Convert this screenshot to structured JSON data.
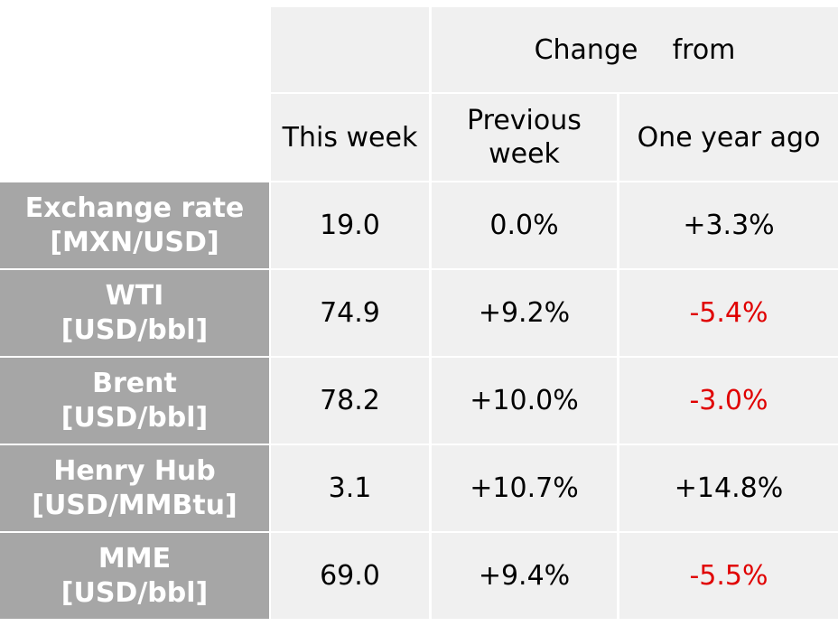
{
  "header": {
    "change_from": "Change    from",
    "this_week": "This week",
    "previous_week": "Previous\nweek",
    "one_year_ago": "One year ago"
  },
  "rows": [
    {
      "label": "Exchange rate\n[MXN/USD]",
      "this_week": "19.0",
      "previous_week": "0.0%",
      "one_year_ago": "+3.3%",
      "one_year_negative": false
    },
    {
      "label": "WTI\n[USD/bbl]",
      "this_week": "74.9",
      "previous_week": "+9.2%",
      "one_year_ago": "-5.4%",
      "one_year_negative": true
    },
    {
      "label": "Brent\n[USD/bbl]",
      "this_week": "78.2",
      "previous_week": "+10.0%",
      "one_year_ago": "-3.0%",
      "one_year_negative": true
    },
    {
      "label": "Henry Hub\n[USD/MMBtu]",
      "this_week": "3.1",
      "previous_week": "+10.7%",
      "one_year_ago": "+14.8%",
      "one_year_negative": false
    },
    {
      "label": "MME\n[USD/bbl]",
      "this_week": "69.0",
      "previous_week": "+9.4%",
      "one_year_ago": "-5.5%",
      "one_year_negative": true
    }
  ],
  "colors": {
    "label_bg": "#a6a6a6",
    "cell_bg": "#f0f0f0",
    "negative": "#e00000"
  }
}
